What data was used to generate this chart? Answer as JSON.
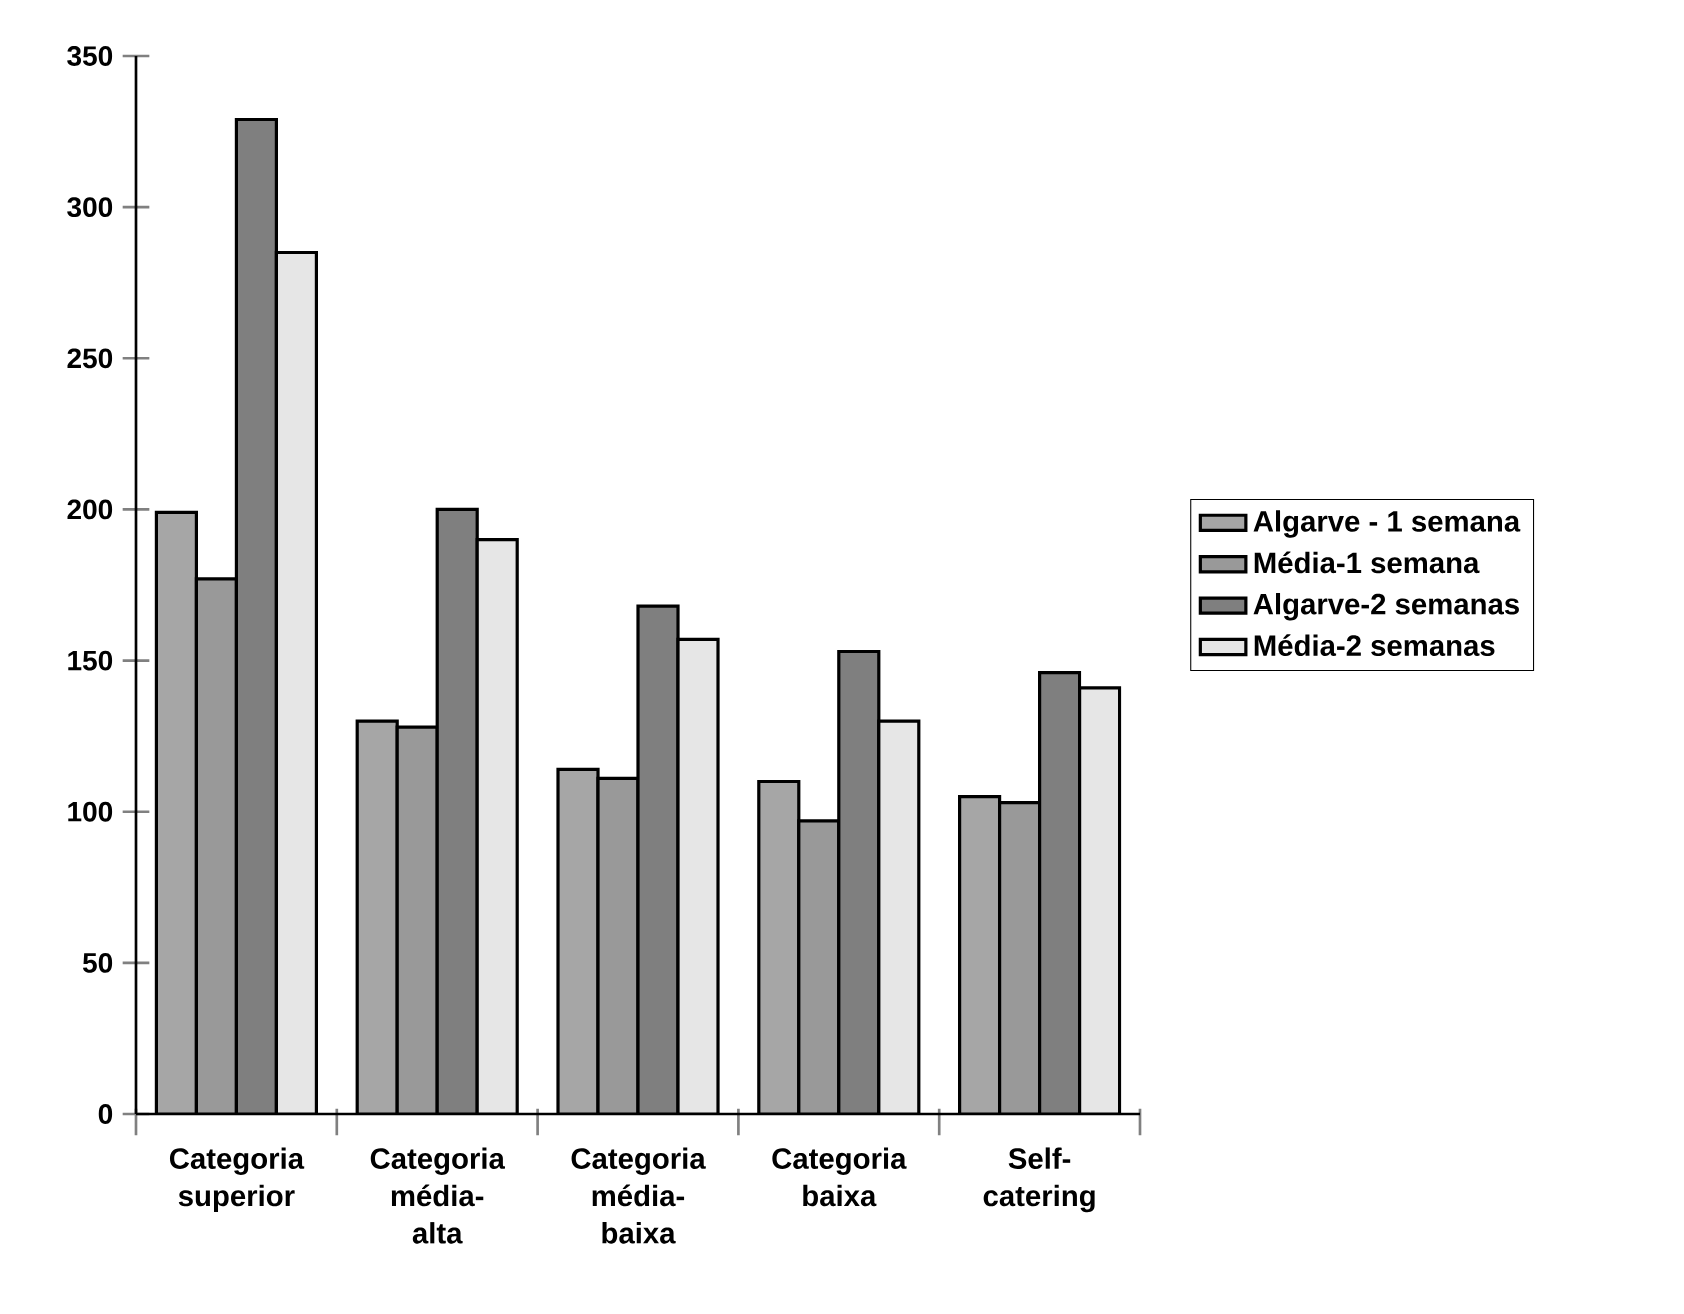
{
  "chart_data": {
    "type": "bar",
    "categories": [
      "Categoria superior",
      "Categoria média-alta",
      "Categoria média-baixa",
      "Categoria baixa",
      "Self-catering"
    ],
    "series": [
      {
        "name": "Algarve - 1 semana",
        "color": "#a6a6a6",
        "values": [
          199,
          130,
          114,
          110,
          105
        ]
      },
      {
        "name": "Média-1 semana",
        "color": "#999999",
        "values": [
          177,
          128,
          111,
          97,
          103
        ]
      },
      {
        "name": "Algarve-2 semanas",
        "color": "#7f7f7f",
        "values": [
          329,
          200,
          168,
          153,
          146
        ]
      },
      {
        "name": "Média-2 semanas",
        "color": "#e6e6e6",
        "values": [
          285,
          190,
          157,
          130,
          141
        ]
      }
    ],
    "ylim": [
      0,
      350
    ],
    "yticks": [
      0,
      50,
      100,
      150,
      200,
      250,
      300,
      350
    ],
    "grid": false,
    "legend": "right"
  }
}
